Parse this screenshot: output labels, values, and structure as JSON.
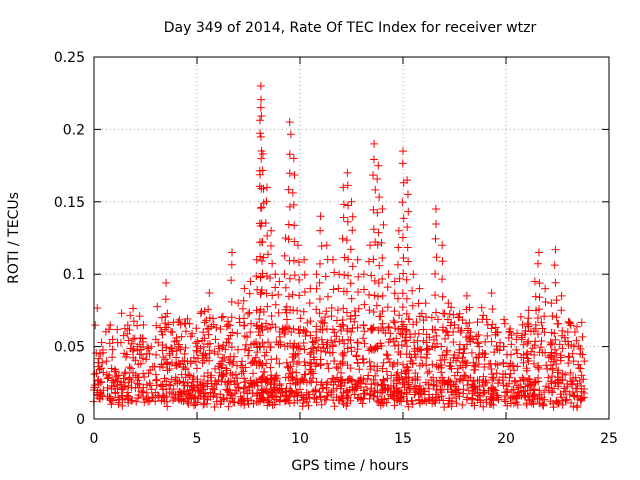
{
  "chart_data": {
    "type": "scatter",
    "title": "Day 349 of 2014, Rate Of TEC Index for receiver wtzr",
    "xlabel": "GPS time / hours",
    "ylabel": "ROTI / TECUs",
    "xlim": [
      0,
      25
    ],
    "ylim": [
      0,
      0.25
    ],
    "xticks": [
      0,
      5,
      10,
      15,
      20,
      25
    ],
    "xtick_labels": [
      "0",
      "5",
      "10",
      "15",
      "20",
      "25"
    ],
    "yticks": [
      0,
      0.05,
      0.1,
      0.15,
      0.2,
      0.25
    ],
    "ytick_labels": [
      "0",
      "0.05",
      "0.1",
      "0.15",
      "0.2",
      "0.25"
    ],
    "grid": true,
    "marker": "+",
    "series": [
      {
        "name": "ROTI",
        "color": "#ff0000",
        "x": [
          0.0,
          0.3,
          0.6,
          0.9,
          1.2,
          1.5,
          1.8,
          2.1,
          2.4,
          2.7,
          3.0,
          3.3,
          3.5,
          3.8,
          4.1,
          4.4,
          4.7,
          5.0,
          5.3,
          5.6,
          5.9,
          6.2,
          6.5,
          6.7,
          7.0,
          7.3,
          7.6,
          7.9,
          8.1,
          8.1,
          8.2,
          8.4,
          8.6,
          8.8,
          9.0,
          9.3,
          9.5,
          9.7,
          9.9,
          10.2,
          10.5,
          10.8,
          11.0,
          11.3,
          11.6,
          11.9,
          12.1,
          12.3,
          12.5,
          12.8,
          13.1,
          13.4,
          13.6,
          13.8,
          14.0,
          14.3,
          14.6,
          14.8,
          15.0,
          15.2,
          15.5,
          15.8,
          16.1,
          16.4,
          16.6,
          16.9,
          17.2,
          17.5,
          17.8,
          18.1,
          18.4,
          18.7,
          19.0,
          19.3,
          19.6,
          19.9,
          20.2,
          20.5,
          20.8,
          21.1,
          21.4,
          21.6,
          21.9,
          22.2,
          22.4,
          22.7,
          23.0,
          23.3,
          23.6,
          23.8
        ],
        "y": [
          0.02,
          0.045,
          0.04,
          0.055,
          0.03,
          0.025,
          0.035,
          0.05,
          0.065,
          0.045,
          0.055,
          0.07,
          0.094,
          0.06,
          0.05,
          0.045,
          0.04,
          0.035,
          0.06,
          0.087,
          0.055,
          0.07,
          0.065,
          0.115,
          0.08,
          0.09,
          0.095,
          0.11,
          0.23,
          0.215,
          0.183,
          0.16,
          0.13,
          0.1,
          0.095,
          0.125,
          0.205,
          0.18,
          0.12,
          0.11,
          0.09,
          0.1,
          0.14,
          0.12,
          0.11,
          0.1,
          0.16,
          0.17,
          0.15,
          0.11,
          0.1,
          0.12,
          0.19,
          0.175,
          0.145,
          0.1,
          0.095,
          0.13,
          0.185,
          0.165,
          0.1,
          0.09,
          0.08,
          0.07,
          0.145,
          0.12,
          0.08,
          0.065,
          0.06,
          0.085,
          0.055,
          0.05,
          0.045,
          0.087,
          0.06,
          0.05,
          0.06,
          0.055,
          0.065,
          0.075,
          0.095,
          0.115,
          0.09,
          0.08,
          0.117,
          0.085,
          0.06,
          0.05,
          0.045,
          0.04
        ]
      }
    ]
  }
}
